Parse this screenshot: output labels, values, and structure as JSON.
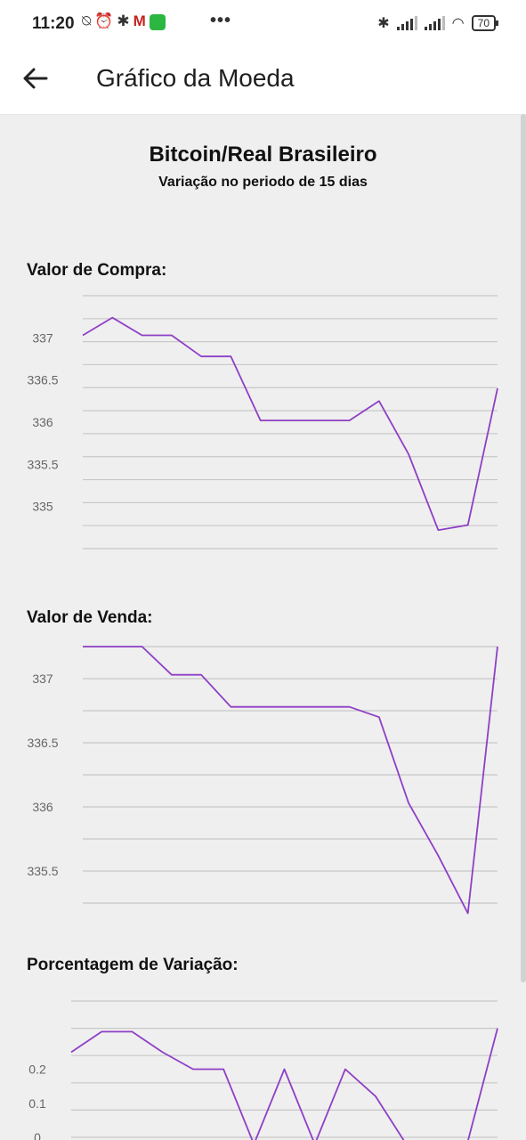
{
  "status_bar": {
    "time": "11:20",
    "battery": "70",
    "icons_left": [
      "alarm-off-icon",
      "alarm-icon",
      "puzzle-icon",
      "gmail-icon",
      "whatsapp-icon"
    ],
    "more": "•••"
  },
  "app_bar": {
    "title": "Gráfico da Moeda"
  },
  "header": {
    "title": "Bitcoin/Real Brasileiro",
    "subtitle": "Variação no periodo de 15 dias"
  },
  "colors": {
    "line": "#8e3fc6",
    "grid": "#c8c8c8",
    "background": "#efefef"
  },
  "sections": {
    "compra_label": "Valor de Compra:",
    "venda_label": "Valor de Venda:",
    "variacao_label": "Porcentagem de Variação:"
  },
  "chart_data": [
    {
      "type": "line",
      "title": "Valor de Compra:",
      "x": [
        1,
        2,
        3,
        4,
        5,
        6,
        7,
        8,
        9,
        10,
        11,
        12,
        13,
        14,
        15
      ],
      "values": [
        337.03,
        337.24,
        337.03,
        337.03,
        336.78,
        336.78,
        336.02,
        336.02,
        336.02,
        336.02,
        336.25,
        335.62,
        334.72,
        334.78,
        336.4
      ],
      "ylim": [
        334.5,
        337.5
      ],
      "yticks": [
        "337",
        "336.5",
        "336",
        "335.5",
        "335"
      ],
      "grid": true
    },
    {
      "type": "line",
      "title": "Valor de Venda:",
      "x": [
        1,
        2,
        3,
        4,
        5,
        6,
        7,
        8,
        9,
        10,
        11,
        12,
        13,
        14,
        15
      ],
      "values": [
        337.25,
        337.25,
        337.25,
        337.03,
        337.03,
        336.78,
        336.78,
        336.78,
        336.78,
        336.78,
        336.7,
        336.03,
        335.62,
        335.17,
        337.25
      ],
      "ylim": [
        335.25,
        337.25
      ],
      "yticks": [
        "337",
        "336.5",
        "336",
        "335.5"
      ],
      "grid": true
    },
    {
      "type": "line",
      "title": "Porcentagem de Variação:",
      "x": [
        1,
        2,
        3,
        4,
        5,
        6,
        7,
        8,
        9,
        10,
        11,
        12,
        13,
        14,
        15
      ],
      "values": [
        0.25,
        0.31,
        0.31,
        0.25,
        0.2,
        0.2,
        -0.02,
        0.2,
        -0.02,
        0.2,
        0.12,
        -0.02,
        -0.02,
        -0.02,
        0.32
      ],
      "ylim": [
        0,
        0.4
      ],
      "yticks": [
        "0.2",
        "0.1",
        "0"
      ],
      "grid": true
    }
  ]
}
